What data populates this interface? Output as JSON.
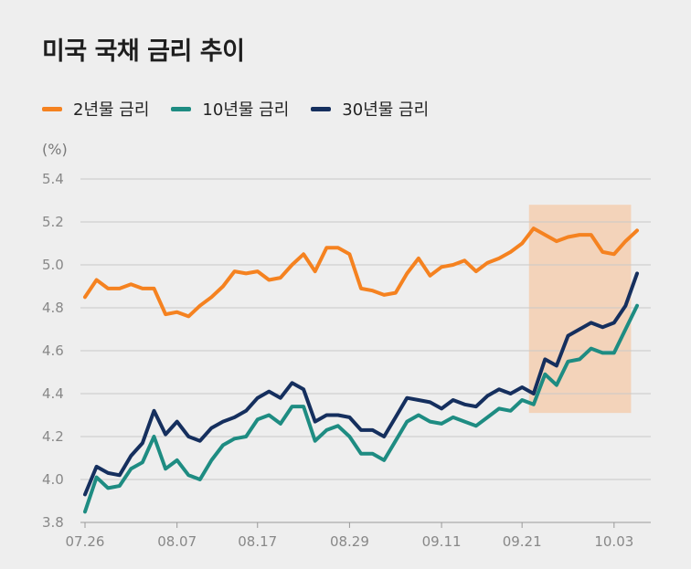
{
  "title": "미국 국채 금리 추이",
  "unit": "(%)",
  "colors": {
    "y2": "#F58220",
    "y10": "#1E8C82",
    "y30": "#152F5E",
    "highlight": "#F3CEB0",
    "grid": "#C8C8C8"
  },
  "chart_data": {
    "type": "line",
    "title": "미국 국채 금리 추이",
    "ylabel": "(%)",
    "xlabel": "",
    "ylim": [
      3.8,
      5.4
    ],
    "yticks": [
      "5.4",
      "5.2",
      "5.0",
      "4.8",
      "4.6",
      "4.4",
      "4.2",
      "4.0",
      "3.8"
    ],
    "xtick_labels": [
      "07.26",
      "08.07",
      "08.17",
      "08.29",
      "09.11",
      "09.21",
      "10.03"
    ],
    "xtick_index": [
      0,
      8,
      15,
      23,
      31,
      38,
      46
    ],
    "legend_position": "top-left",
    "grid": true,
    "highlight_range": {
      "from_index": 39,
      "to_index": 47,
      "ylim": [
        4.31,
        5.28
      ]
    },
    "series": [
      {
        "name": "2년물 금리",
        "key": "y2",
        "values": [
          4.85,
          4.93,
          4.89,
          4.89,
          4.91,
          4.89,
          4.89,
          4.77,
          4.78,
          4.76,
          4.81,
          4.85,
          4.9,
          4.97,
          4.96,
          4.97,
          4.93,
          4.94,
          5.0,
          5.05,
          4.97,
          5.08,
          5.08,
          5.05,
          4.89,
          4.88,
          4.86,
          4.87,
          4.96,
          5.03,
          4.95,
          4.99,
          5.0,
          5.02,
          4.97,
          5.01,
          5.03,
          5.06,
          5.1,
          5.17,
          5.14,
          5.11,
          5.13,
          5.14,
          5.14,
          5.06,
          5.05,
          5.11,
          5.16
        ]
      },
      {
        "name": "10년물 금리",
        "key": "y10",
        "values": [
          3.85,
          4.01,
          3.96,
          3.97,
          4.05,
          4.08,
          4.2,
          4.05,
          4.09,
          4.02,
          4.0,
          4.09,
          4.16,
          4.19,
          4.2,
          4.28,
          4.3,
          4.26,
          4.34,
          4.34,
          4.18,
          4.23,
          4.25,
          4.2,
          4.12,
          4.12,
          4.09,
          4.18,
          4.27,
          4.3,
          4.27,
          4.26,
          4.29,
          4.27,
          4.25,
          4.29,
          4.33,
          4.32,
          4.37,
          4.35,
          4.49,
          4.44,
          4.55,
          4.56,
          4.61,
          4.59,
          4.59,
          4.7,
          4.81
        ]
      },
      {
        "name": "30년물 금리",
        "key": "y30",
        "values": [
          3.93,
          4.06,
          4.03,
          4.02,
          4.11,
          4.17,
          4.32,
          4.21,
          4.27,
          4.2,
          4.18,
          4.24,
          4.27,
          4.29,
          4.32,
          4.38,
          4.41,
          4.38,
          4.45,
          4.42,
          4.27,
          4.3,
          4.3,
          4.29,
          4.23,
          4.23,
          4.2,
          4.29,
          4.38,
          4.37,
          4.36,
          4.33,
          4.37,
          4.35,
          4.34,
          4.39,
          4.42,
          4.4,
          4.43,
          4.4,
          4.56,
          4.53,
          4.67,
          4.7,
          4.73,
          4.71,
          4.73,
          4.81,
          4.96
        ]
      }
    ]
  }
}
